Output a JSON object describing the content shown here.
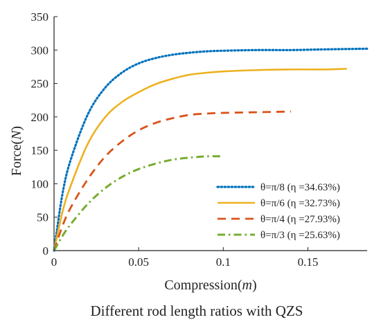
{
  "chart_data": {
    "type": "line",
    "xlabel": "Compression(",
    "xlabel_unit": "m",
    "xlabel_close": ")",
    "ylabel": "Force(",
    "ylabel_unit": "N",
    "ylabel_close": ")",
    "xlim": [
      0,
      0.185
    ],
    "ylim": [
      0,
      350
    ],
    "x_ticks": [
      0,
      0.05,
      0.1,
      0.15
    ],
    "x_tick_labels": [
      "0",
      "0.05",
      "0.1",
      "0.15"
    ],
    "y_ticks": [
      0,
      50,
      100,
      150,
      200,
      250,
      300,
      350
    ],
    "y_tick_labels": [
      "0",
      "50",
      "100",
      "150",
      "200",
      "250",
      "300",
      "350"
    ],
    "grid": false,
    "legend_position": "bottom-right",
    "caption": "Different rod length ratios with QZS",
    "series": [
      {
        "name": "θ=π/8 (η =34.63%)",
        "color": "#0072BD",
        "dash": "dotted",
        "x": [
          0,
          0.005,
          0.01,
          0.02,
          0.03,
          0.04,
          0.05,
          0.06,
          0.07,
          0.08,
          0.09,
          0.1,
          0.12,
          0.14,
          0.16,
          0.185
        ],
        "y": [
          0,
          85,
          137,
          204,
          243,
          266,
          280,
          288,
          293,
          296,
          298,
          299,
          300,
          300,
          301,
          302
        ]
      },
      {
        "name": "θ=π/6 (η =32.73%)",
        "color": "#EDB120",
        "dash": "solid",
        "x": [
          0,
          0.005,
          0.01,
          0.02,
          0.03,
          0.04,
          0.05,
          0.06,
          0.07,
          0.08,
          0.09,
          0.1,
          0.12,
          0.14,
          0.16,
          0.173
        ],
        "y": [
          0,
          58,
          98,
          160,
          199,
          222,
          237,
          249,
          257,
          263,
          266,
          268,
          270,
          271,
          271,
          272
        ]
      },
      {
        "name": "θ=π/4 (η =27.93%)",
        "color": "#D95319",
        "dash": "dashed",
        "x": [
          0,
          0.005,
          0.01,
          0.02,
          0.03,
          0.04,
          0.05,
          0.06,
          0.07,
          0.08,
          0.09,
          0.1,
          0.12,
          0.14
        ],
        "y": [
          0,
          37,
          65,
          107,
          140,
          163,
          180,
          191,
          198,
          203,
          205,
          206,
          207,
          208
        ]
      },
      {
        "name": "θ=π/3 (η =25.63%)",
        "color": "#77AC30",
        "dash": "dashdot",
        "x": [
          0,
          0.005,
          0.01,
          0.02,
          0.03,
          0.04,
          0.05,
          0.06,
          0.07,
          0.08,
          0.09,
          0.1
        ],
        "y": [
          0,
          22,
          40,
          70,
          93,
          110,
          122,
          130,
          136,
          139,
          141,
          141
        ]
      }
    ]
  }
}
